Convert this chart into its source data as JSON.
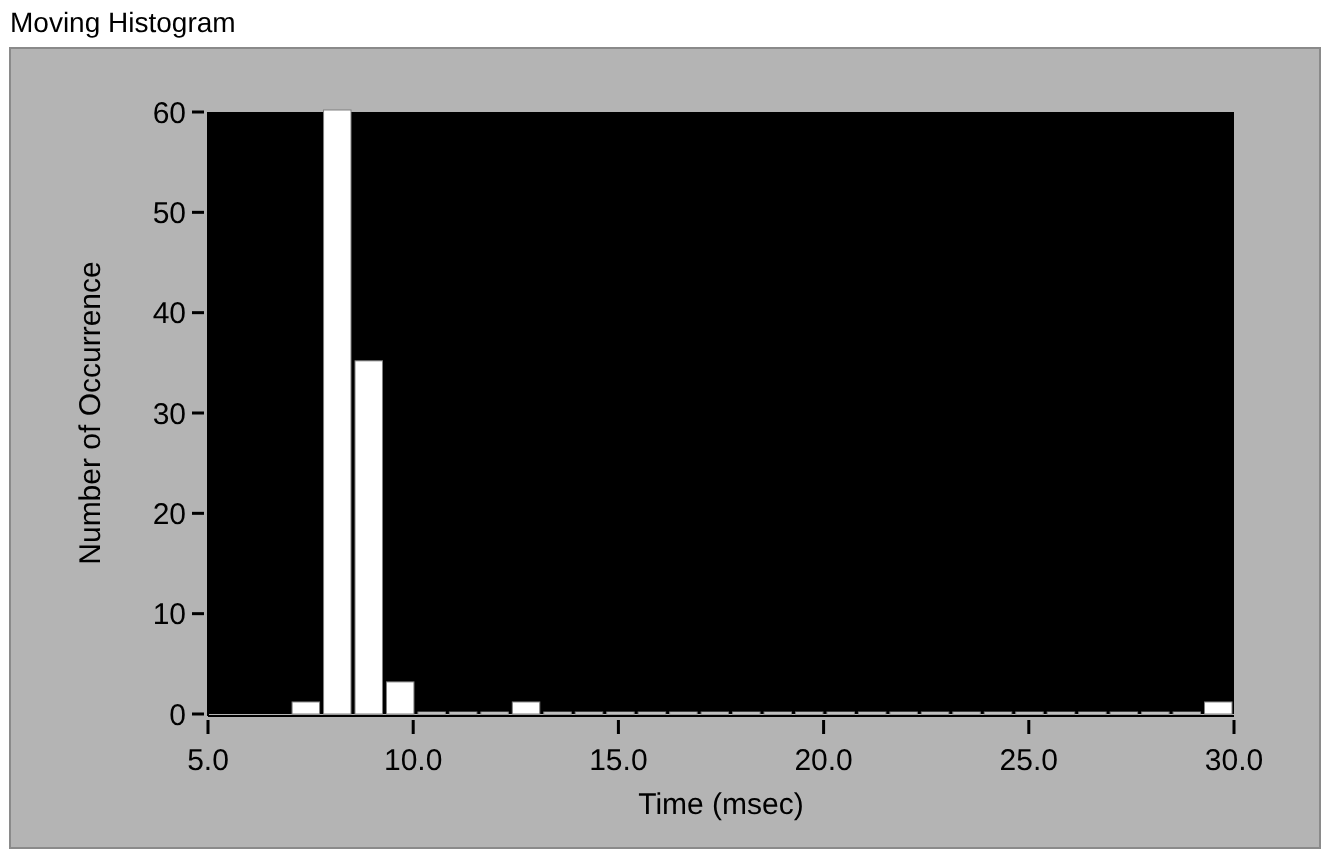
{
  "chart_data": {
    "type": "histogram",
    "title": "Moving Histogram",
    "xlabel": "Time (msec)",
    "ylabel": "Number of Occurrence",
    "bins": [
      7.0,
      7.767,
      8.533,
      9.3,
      10.067,
      10.833,
      11.6,
      12.367,
      13.133,
      13.9,
      14.667,
      15.433,
      16.2,
      16.967,
      17.733,
      18.5,
      19.267,
      20.033,
      20.8,
      21.567,
      22.333,
      23.1,
      23.867,
      24.633,
      25.4,
      26.167,
      26.933,
      27.7,
      28.467,
      29.233,
      30.0
    ],
    "values": [
      1,
      60,
      35,
      3,
      0,
      0,
      0,
      1,
      0,
      0,
      0,
      0,
      0,
      0,
      0,
      0,
      0,
      0,
      0,
      0,
      0,
      0,
      0,
      0,
      0,
      0,
      0,
      0,
      0,
      1
    ],
    "color": "#ffffff",
    "xlim": [
      5,
      30
    ],
    "xticks": [
      {
        "value": 5,
        "label": "5.0"
      },
      {
        "value": 10,
        "label": "10.0"
      },
      {
        "value": 15,
        "label": "15.0"
      },
      {
        "value": 20,
        "label": "20.0"
      },
      {
        "value": 25,
        "label": "25.0"
      },
      {
        "value": 30,
        "label": "30.0"
      }
    ],
    "ylim": [
      0,
      60
    ],
    "yticks": [
      0,
      10,
      20,
      30,
      40,
      50,
      60
    ],
    "grid": false
  }
}
